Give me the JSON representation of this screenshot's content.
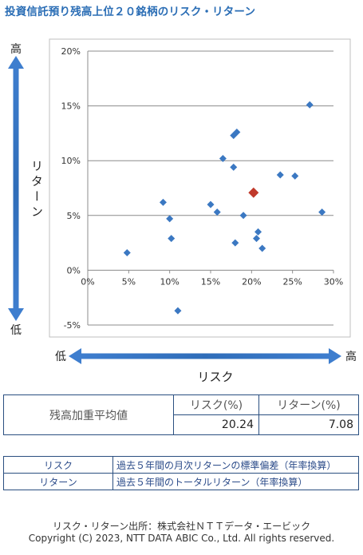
{
  "title": "投資信託預り残高上位２０銘柄のリスク・リターン",
  "y_axis_word": "リターン",
  "y_high": "高",
  "y_low": "低",
  "x_axis_word": "リスク",
  "x_low": "低",
  "x_high": "高",
  "chart_data": {
    "type": "scatter",
    "x_ticks": [
      "0%",
      "5%",
      "10%",
      "15%",
      "20%",
      "25%",
      "30%"
    ],
    "y_ticks": [
      "20%",
      "15%",
      "10%",
      "5%",
      "0%",
      "-5%"
    ],
    "xlim": [
      0,
      30
    ],
    "ylim": [
      -5,
      20
    ],
    "grid": "horizontal",
    "series": [
      {
        "color": "#3b78c2",
        "points": [
          {
            "x": 4.8,
            "y": 1.6
          },
          {
            "x": 9.2,
            "y": 6.2
          },
          {
            "x": 10.0,
            "y": 4.7
          },
          {
            "x": 10.2,
            "y": 2.9
          },
          {
            "x": 11.0,
            "y": -3.7
          },
          {
            "x": 15.0,
            "y": 6.0
          },
          {
            "x": 15.8,
            "y": 5.3
          },
          {
            "x": 16.5,
            "y": 10.2
          },
          {
            "x": 17.8,
            "y": 9.4
          },
          {
            "x": 17.8,
            "y": 12.3
          },
          {
            "x": 18.2,
            "y": 12.6
          },
          {
            "x": 18.0,
            "y": 2.5
          },
          {
            "x": 19.0,
            "y": 5.0
          },
          {
            "x": 20.6,
            "y": 2.9
          },
          {
            "x": 20.8,
            "y": 3.5
          },
          {
            "x": 21.3,
            "y": 2.0
          },
          {
            "x": 23.5,
            "y": 8.7
          },
          {
            "x": 25.3,
            "y": 8.6
          },
          {
            "x": 27.1,
            "y": 15.1
          },
          {
            "x": 28.6,
            "y": 5.3
          }
        ]
      },
      {
        "color": "#c0392b",
        "points": [
          {
            "x": 20.24,
            "y": 7.08
          }
        ]
      }
    ]
  },
  "summary": {
    "row_label": "残高加重平均値",
    "risk_header": "リスク(%)",
    "return_header": "リターン(%)",
    "risk_value": "20.24",
    "return_value": "7.08"
  },
  "definitions": [
    {
      "term": "リスク",
      "desc": "過去５年間の月次リターンの標準偏差（年率換算）"
    },
    {
      "term": "リターン",
      "desc": "過去５年間のトータルリターン（年率換算）"
    }
  ],
  "footer": {
    "source": "リスク・リターン出所：株式会社ＮＴＴデータ・エービック",
    "copyright": "Copyright (C)  2023, NTT DATA ABIC Co., Ltd. All rights reserved."
  }
}
